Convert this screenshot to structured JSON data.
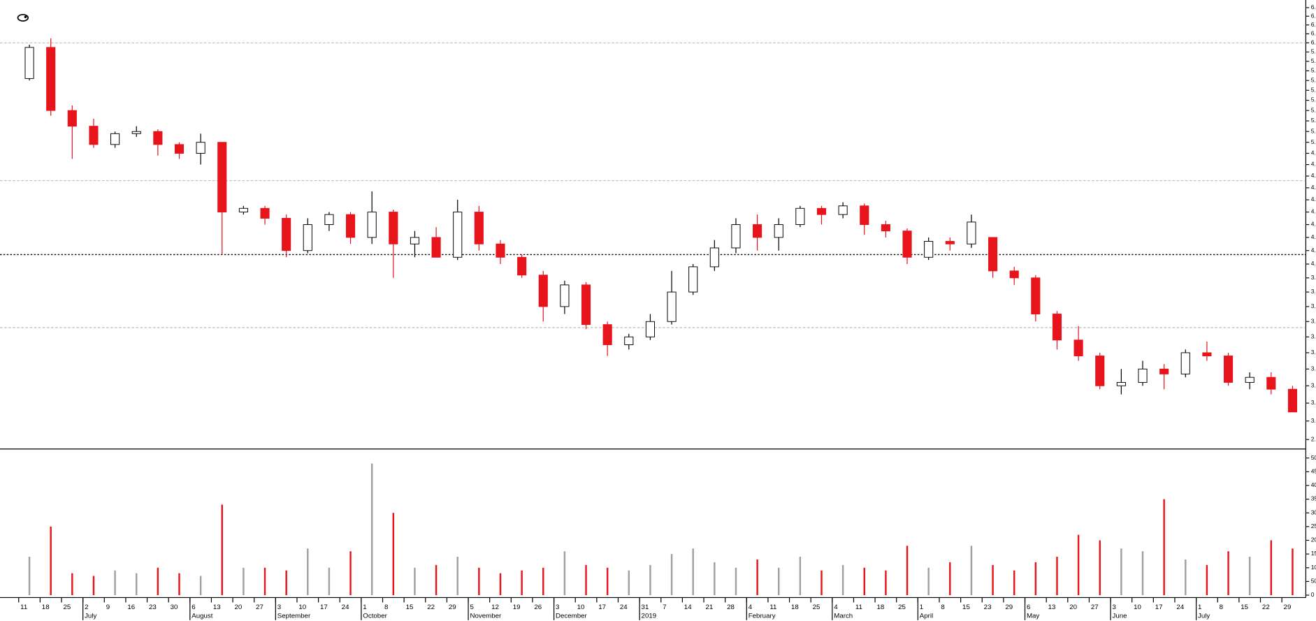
{
  "chart_data": {
    "type": "candlestick",
    "categories": [
      "11",
      "18",
      "25",
      "2",
      "9",
      "16",
      "23",
      "30",
      "6",
      "13",
      "20",
      "27",
      "3",
      "10",
      "17",
      "24",
      "1",
      "8",
      "15",
      "22",
      "29",
      "5",
      "12",
      "19",
      "26",
      "3",
      "10",
      "17",
      "24",
      "31",
      "7",
      "14",
      "21",
      "28",
      "4",
      "11",
      "18",
      "25",
      "4",
      "11",
      "18",
      "25",
      "1",
      "8",
      "15",
      "23",
      "29",
      "6",
      "13",
      "20",
      "27",
      "3",
      "10",
      "17",
      "24",
      "1",
      "8",
      "15",
      "22",
      "29"
    ],
    "month_labels": [
      null,
      null,
      null,
      "July",
      null,
      null,
      null,
      null,
      "August",
      null,
      null,
      null,
      "September",
      null,
      null,
      null,
      "October",
      null,
      null,
      null,
      null,
      "November",
      null,
      null,
      null,
      "December",
      null,
      null,
      null,
      "2019",
      null,
      null,
      null,
      null,
      "February",
      null,
      null,
      null,
      "March",
      null,
      null,
      null,
      "April",
      null,
      null,
      null,
      null,
      "May",
      null,
      null,
      null,
      "June",
      null,
      null,
      null,
      "July",
      null,
      null,
      null,
      null
    ],
    "open": [
      5.62,
      5.95,
      5.3,
      5.15,
      4.98,
      5.08,
      5.1,
      4.98,
      4.9,
      5.0,
      4.4,
      4.43,
      4.35,
      4.1,
      4.3,
      4.38,
      4.2,
      4.4,
      4.15,
      4.2,
      4.05,
      4.4,
      4.15,
      4.05,
      3.92,
      3.7,
      3.85,
      3.58,
      3.45,
      3.5,
      3.6,
      3.8,
      3.98,
      4.12,
      4.3,
      4.2,
      4.3,
      4.43,
      4.38,
      4.45,
      4.3,
      4.25,
      4.05,
      4.17,
      4.15,
      4.2,
      3.95,
      3.9,
      3.65,
      3.48,
      3.38,
      3.2,
      3.22,
      3.3,
      3.27,
      3.4,
      3.38,
      3.22,
      3.25,
      3.18
    ],
    "high": [
      5.98,
      6.05,
      5.35,
      5.22,
      5.1,
      5.15,
      5.12,
      5.0,
      5.08,
      5.0,
      4.45,
      4.45,
      4.38,
      4.35,
      4.4,
      4.4,
      4.57,
      4.42,
      4.25,
      4.28,
      4.5,
      4.45,
      4.18,
      4.07,
      3.95,
      3.88,
      3.87,
      3.6,
      3.52,
      3.65,
      3.95,
      4.0,
      4.18,
      4.35,
      4.38,
      4.35,
      4.45,
      4.45,
      4.48,
      4.47,
      4.33,
      4.27,
      4.2,
      4.2,
      4.38,
      4.2,
      3.98,
      3.92,
      3.67,
      3.57,
      3.4,
      3.3,
      3.35,
      3.33,
      3.42,
      3.47,
      3.4,
      3.28,
      3.28,
      3.2
    ],
    "low": [
      5.6,
      5.25,
      4.85,
      4.95,
      4.95,
      5.05,
      4.88,
      4.85,
      4.8,
      4.07,
      4.38,
      4.3,
      4.05,
      4.08,
      4.25,
      4.15,
      4.15,
      3.9,
      4.05,
      4.05,
      4.03,
      4.1,
      4.0,
      3.9,
      3.6,
      3.65,
      3.55,
      3.38,
      3.42,
      3.48,
      3.58,
      3.78,
      3.95,
      4.08,
      4.1,
      4.1,
      4.28,
      4.3,
      4.35,
      4.22,
      4.2,
      4.0,
      4.03,
      4.1,
      4.12,
      3.9,
      3.85,
      3.6,
      3.42,
      3.35,
      3.18,
      3.15,
      3.2,
      3.18,
      3.25,
      3.35,
      3.2,
      3.18,
      3.15,
      3.05
    ],
    "close": [
      5.95,
      5.3,
      5.15,
      4.98,
      5.08,
      5.1,
      4.98,
      4.9,
      5.0,
      4.4,
      4.43,
      4.35,
      4.1,
      4.3,
      4.38,
      4.2,
      4.4,
      4.15,
      4.2,
      4.05,
      4.4,
      4.15,
      4.05,
      3.92,
      3.7,
      3.85,
      3.58,
      3.45,
      3.5,
      3.6,
      3.8,
      3.98,
      4.12,
      4.3,
      4.2,
      4.3,
      4.43,
      4.38,
      4.45,
      4.3,
      4.25,
      4.05,
      4.17,
      4.15,
      4.32,
      3.95,
      3.9,
      3.65,
      3.48,
      3.38,
      3.2,
      3.22,
      3.3,
      3.27,
      3.4,
      3.38,
      3.22,
      3.25,
      3.18,
      3.05
    ],
    "up_color": "#ffffff",
    "down_color": "#e8141c",
    "log_scale": true,
    "ylim": [
      2.85,
      6.49
    ],
    "yticks": [
      2.9,
      {
        "value": 3.0,
        "label": "3.0"
      },
      3.1,
      3.2,
      3.3,
      3.4,
      3.5,
      3.6,
      3.7,
      3.8,
      3.9,
      {
        "value": 4.0,
        "label": "4.0"
      },
      4.1,
      4.2,
      4.3,
      4.4,
      4.5,
      4.6,
      4.7,
      4.8,
      4.9,
      {
        "value": 5.0,
        "label": "5.0"
      },
      5.1,
      5.2,
      5.3,
      5.4,
      5.5,
      5.6,
      5.7,
      5.8,
      5.9,
      {
        "value": 6.0,
        "label": "6.0"
      },
      6.1,
      6.2,
      6.3,
      6.4
    ],
    "reference_lines": [
      6.0,
      4.66,
      4.07,
      3.56
    ],
    "volume": {
      "values": [
        14000,
        25000,
        8000,
        7000,
        9000,
        8000,
        10000,
        8000,
        7000,
        33000,
        10000,
        10000,
        9000,
        17000,
        10000,
        16000,
        48000,
        30000,
        10000,
        11000,
        14000,
        10000,
        8000,
        9000,
        10000,
        16000,
        11000,
        10000,
        9000,
        11000,
        15000,
        17000,
        12000,
        10000,
        13000,
        10000,
        14000,
        9000,
        11000,
        10000,
        9000,
        18000,
        10000,
        12000,
        18000,
        11000,
        9000,
        12000,
        14000,
        22000,
        20000,
        17000,
        16000,
        35000,
        13000,
        11000,
        16000,
        14000,
        20000,
        17000
      ],
      "up_color": "#a0a0a0",
      "down_color": "#e8141c",
      "ylim": [
        0,
        53000
      ],
      "yticks": [
        0,
        5000,
        10000,
        15000,
        20000,
        25000,
        30000,
        35000,
        40000,
        45000,
        50000
      ]
    }
  }
}
